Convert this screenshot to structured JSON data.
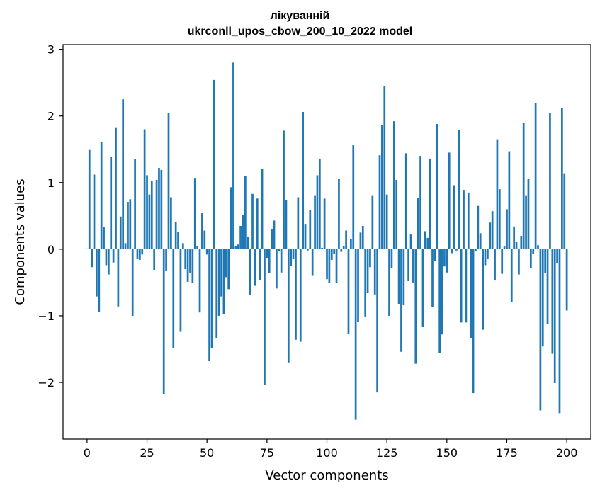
{
  "chart_data": {
    "type": "bar",
    "title_line1": "лікуванній",
    "title_line2": "ukrconll_upos_cbow_200_10_2022 model",
    "xlabel": "Vector components",
    "ylabel": "Components values",
    "xlim": [
      -10,
      210
    ],
    "ylim": [
      -2.85,
      3.07
    ],
    "xticks": [
      0,
      25,
      50,
      75,
      100,
      125,
      150,
      175,
      200
    ],
    "yticks": [
      -2,
      -1,
      0,
      1,
      2,
      3
    ],
    "ytick_labels": [
      "−2",
      "−1",
      "0",
      "1",
      "2",
      "3"
    ],
    "bar_color": "#1f77b4",
    "values": [
      0.01,
      1.49,
      -0.27,
      1.12,
      -0.71,
      -0.94,
      1.61,
      0.33,
      -0.24,
      -0.38,
      1.38,
      -0.2,
      1.83,
      -0.86,
      0.49,
      2.25,
      0.09,
      0.71,
      0.75,
      -1.0,
      1.35,
      -0.15,
      -0.16,
      -0.08,
      1.8,
      1.11,
      0.82,
      1.02,
      -0.31,
      1.04,
      1.22,
      1.19,
      -2.17,
      -0.32,
      2.05,
      0.78,
      -1.49,
      0.41,
      0.26,
      -1.24,
      0.09,
      -0.3,
      -0.49,
      -0.36,
      -0.51,
      1.07,
      0.05,
      -0.95,
      0.54,
      0.28,
      -0.08,
      -1.68,
      -1.49,
      2.54,
      -1.33,
      -1.0,
      -0.71,
      -0.98,
      -0.42,
      -0.6,
      0.93,
      2.8,
      0.05,
      0.07,
      0.35,
      0.52,
      1.1,
      0.19,
      -0.69,
      0.83,
      -0.55,
      0.76,
      -0.46,
      1.2,
      -2.04,
      -0.13,
      -0.36,
      0.3,
      0.43,
      -0.59,
      -0.03,
      -0.35,
      1.78,
      0.74,
      -1.7,
      -0.25,
      -0.14,
      -1.36,
      0.78,
      -1.39,
      2.06,
      0.38,
      -0.02,
      0.59,
      -0.39,
      0.81,
      1.11,
      1.36,
      0.02,
      0.76,
      -0.45,
      -0.51,
      -0.16,
      -0.07,
      -0.51,
      1.06,
      -0.04,
      0.05,
      0.28,
      -1.27,
      0.15,
      1.56,
      -2.56,
      -1.09,
      0.25,
      0.35,
      -1.01,
      -0.65,
      -0.27,
      0.81,
      -0.68,
      -2.15,
      1.41,
      1.86,
      2.45,
      0.82,
      -1.0,
      -0.28,
      1.92,
      1.04,
      -0.82,
      -1.54,
      -0.84,
      1.44,
      -0.48,
      0.22,
      -0.5,
      -1.72,
      0.77,
      1.4,
      -1.16,
      0.27,
      0.17,
      1.36,
      -0.87,
      -0.18,
      1.88,
      -1.56,
      -1.28,
      -0.26,
      -0.35,
      1.45,
      -0.06,
      0.96,
      -0.02,
      1.79,
      -1.1,
      0.89,
      -1.1,
      0.85,
      -1.33,
      -2.16,
      -0.03,
      0.65,
      0.24,
      -1.21,
      -0.24,
      -0.15,
      0.4,
      0.57,
      -0.47,
      1.65,
      0.9,
      -0.37,
      0.04,
      0.6,
      1.47,
      -0.79,
      0.34,
      0.11,
      -0.38,
      0.2,
      1.89,
      0.81,
      1.06,
      -0.28,
      -0.07,
      2.19,
      0.06,
      -2.42,
      -1.46,
      -0.36,
      -1.12,
      2.04,
      -1.57,
      -2.01,
      -0.21,
      -2.46,
      2.12,
      1.14,
      -0.92
    ]
  }
}
